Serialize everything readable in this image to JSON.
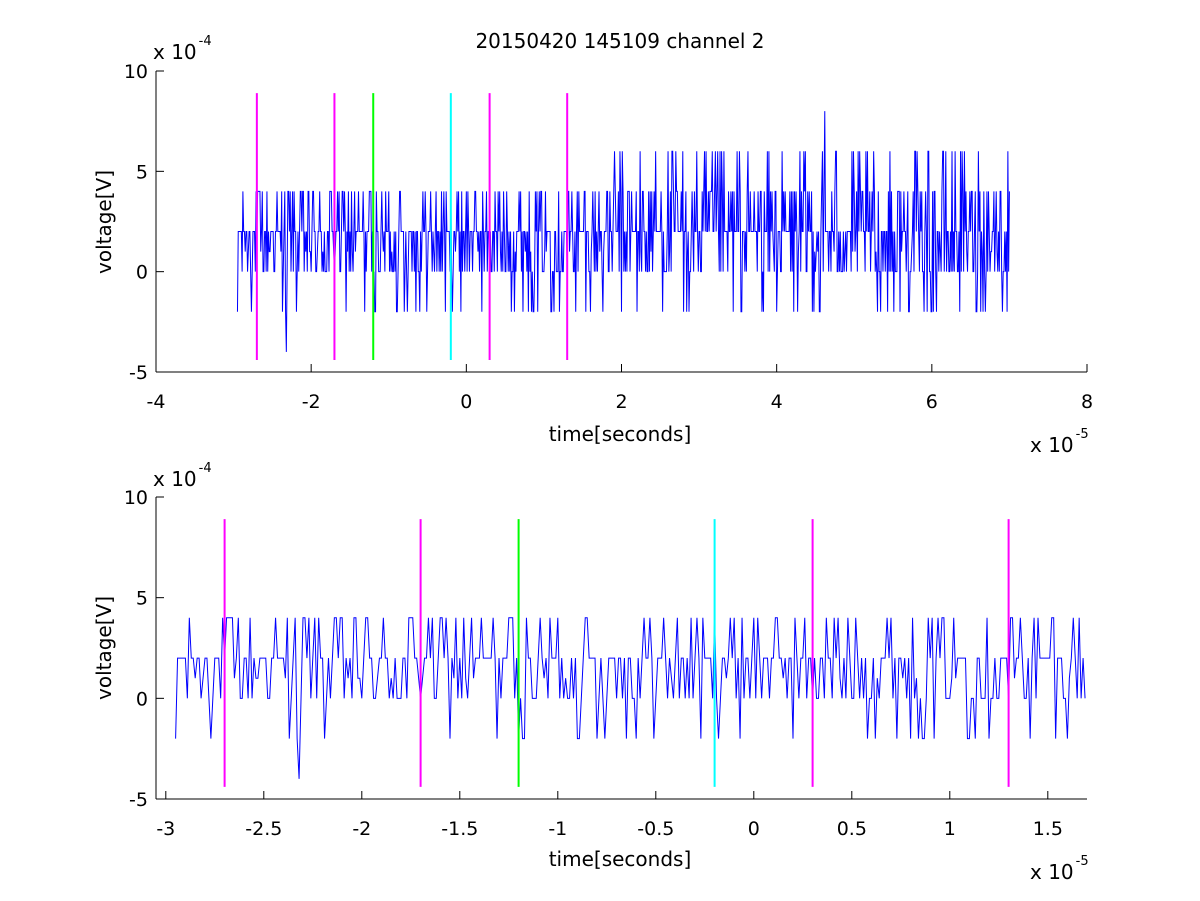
{
  "figure": {
    "title": "20150420 145109 channel 2",
    "colors": {
      "signal": "#0000ff",
      "magenta": "#ff00ff",
      "green": "#00ff00",
      "cyan": "#00ffff",
      "axis": "#000000",
      "background": "#ffffff"
    }
  },
  "plots": [
    {
      "xlabel": "time[seconds]",
      "ylabel": "voltage[V]",
      "y_exponent": "x 10",
      "y_exponent_power": "-4",
      "x_exponent": "x 10",
      "x_exponent_power": "-5",
      "x_tick_labels": [
        "-4",
        "-2",
        "0",
        "2",
        "4",
        "6",
        "8"
      ],
      "y_tick_labels": [
        "-5",
        "0",
        "5",
        "10"
      ]
    },
    {
      "xlabel": "time[seconds]",
      "ylabel": "voltage[V]",
      "y_exponent": "x 10",
      "y_exponent_power": "-4",
      "x_exponent": "x 10",
      "x_exponent_power": "-5",
      "x_tick_labels": [
        "-3",
        "-2.5",
        "-2",
        "-1.5",
        "-1",
        "-0.5",
        "0",
        "0.5",
        "1",
        "1.5"
      ],
      "y_tick_labels": [
        "-5",
        "0",
        "5",
        "10"
      ]
    }
  ],
  "chart_data": [
    {
      "type": "line",
      "title": "20150420 145109 channel 2",
      "xlabel": "time[seconds]",
      "ylabel": "voltage[V]",
      "x_scale_factor": "1e-5",
      "y_scale_factor": "1e-4",
      "xlim": [
        -4,
        8
      ],
      "ylim": [
        -5,
        10
      ],
      "x_ticks": [
        -4,
        -2,
        0,
        2,
        4,
        6,
        8
      ],
      "y_ticks": [
        -5,
        0,
        5,
        10
      ],
      "series": [
        {
          "color": "#0000ff",
          "description_values": {
            "x_start": -2.95,
            "x_end": 7.0,
            "dt": 0.01,
            "y_levels": [
              -4,
              -2,
              0,
              1,
              2,
              4,
              6,
              8
            ],
            "y_range": [
              -4,
              8
            ]
          }
        }
      ],
      "vertical_markers": [
        {
          "x": -2.7,
          "color": "#ff00ff",
          "ymin": -4.4,
          "ymax": 8.9
        },
        {
          "x": -1.7,
          "color": "#ff00ff",
          "ymin": -4.4,
          "ymax": 8.9
        },
        {
          "x": -1.2,
          "color": "#00ff00",
          "ymin": -4.4,
          "ymax": 8.9
        },
        {
          "x": -0.2,
          "color": "#00ffff",
          "ymin": -4.4,
          "ymax": 8.9
        },
        {
          "x": 0.3,
          "color": "#ff00ff",
          "ymin": -4.4,
          "ymax": 8.9
        },
        {
          "x": 1.3,
          "color": "#ff00ff",
          "ymin": -4.4,
          "ymax": 8.9
        }
      ]
    },
    {
      "type": "line",
      "xlabel": "time[seconds]",
      "ylabel": "voltage[V]",
      "x_scale_factor": "1e-5",
      "y_scale_factor": "1e-4",
      "xlim": [
        -3.05,
        1.7
      ],
      "ylim": [
        -5,
        10
      ],
      "x_ticks": [
        -3,
        -2.5,
        -2,
        -1.5,
        -1,
        -0.5,
        0,
        0.5,
        1,
        1.5
      ],
      "y_ticks": [
        -5,
        0,
        5,
        10
      ],
      "series": [
        {
          "color": "#0000ff",
          "description_values": {
            "x_start": -2.95,
            "x_end": 1.7,
            "dt": 0.01,
            "y_levels": [
              -4,
              -2,
              0,
              1,
              2,
              4
            ],
            "y_range": [
              -4,
              4
            ]
          }
        }
      ],
      "vertical_markers": [
        {
          "x": -2.7,
          "color": "#ff00ff",
          "ymin": -4.4,
          "ymax": 8.9
        },
        {
          "x": -1.7,
          "color": "#ff00ff",
          "ymin": -4.4,
          "ymax": 8.9
        },
        {
          "x": -1.2,
          "color": "#00ff00",
          "ymin": -4.4,
          "ymax": 8.9
        },
        {
          "x": -0.2,
          "color": "#00ffff",
          "ymin": -4.4,
          "ymax": 8.9
        },
        {
          "x": 0.3,
          "color": "#ff00ff",
          "ymin": -4.4,
          "ymax": 8.9
        },
        {
          "x": 1.3,
          "color": "#ff00ff",
          "ymin": -4.4,
          "ymax": 8.9
        }
      ]
    }
  ]
}
